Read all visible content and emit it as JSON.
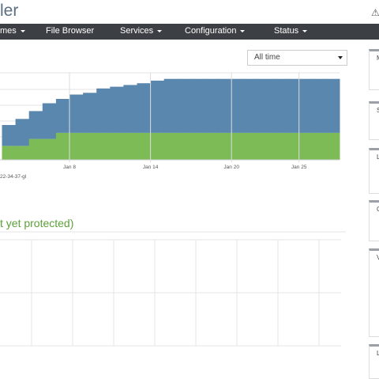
{
  "header": {
    "title": "ler"
  },
  "nav": {
    "items": [
      "mes",
      "File Browser",
      "Services",
      "Configuration",
      "Status"
    ]
  },
  "filter": {
    "selected": "All time"
  },
  "chart_data": {
    "type": "stacked-area",
    "categories": [
      null,
      null,
      null,
      null,
      null,
      "Jan 8",
      null,
      null,
      null,
      null,
      null,
      "Jan 14",
      null,
      null,
      null,
      null,
      null,
      "Jan 20",
      null,
      null,
      null,
      null,
      "Jan 25",
      null,
      null
    ],
    "series": [
      {
        "name": "22-34-37-gl",
        "color": "#7dbb57",
        "values": [
          16,
          16,
          24,
          24,
          31,
          31,
          31,
          31,
          31,
          31,
          31,
          31,
          31,
          31,
          31,
          31,
          31,
          31,
          31,
          31,
          31,
          31,
          31,
          31,
          31
        ]
      },
      {
        "color": "#5a87ad",
        "values": [
          24,
          31,
          32,
          41,
          39,
          44,
          46,
          51,
          53,
          55,
          57,
          60,
          62,
          62,
          62,
          62,
          62,
          62,
          62,
          62,
          62,
          62,
          62,
          62,
          62
        ]
      }
    ],
    "ylim": [
      0,
      100
    ]
  },
  "section": {
    "title": "t yet protected)"
  },
  "sidebar": {
    "panels": [
      "M",
      "S",
      "L",
      "C",
      "V",
      "L"
    ]
  }
}
